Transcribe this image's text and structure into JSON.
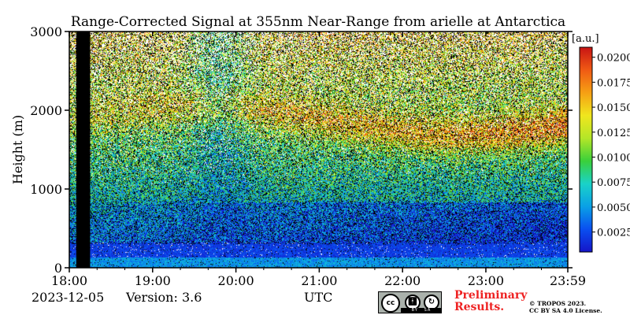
{
  "chart_data": {
    "type": "heatmap",
    "title": "Range-Corrected Signal at 355nm Near-Range from arielle at Antarctica",
    "xlabel": "UTC",
    "ylabel": "Height (m)",
    "x_ticks": [
      "18:00",
      "19:00",
      "20:00",
      "21:00",
      "22:00",
      "23:00",
      "23:59"
    ],
    "y_ticks": [
      0,
      1000,
      2000,
      3000
    ],
    "ylim": [
      0,
      3000
    ],
    "colorbar": {
      "unit": "[a.u.]",
      "ticks": [
        "0.0025",
        "0.0050",
        "0.0075",
        "0.0100",
        "0.0125",
        "0.0150",
        "0.0175",
        "0.0200"
      ],
      "range": [
        0.0005,
        0.021
      ]
    },
    "no_data_interval": [
      "18:05",
      "18:15"
    ],
    "colors": {
      "colormap": [
        "#1515c8",
        "#0a4ff0",
        "#0aa0e6",
        "#1ad2c8",
        "#3ad03a",
        "#b4e628",
        "#f0e61e",
        "#f6a014",
        "#f05a14",
        "#c81414"
      ],
      "no_data": "#000000"
    }
  },
  "footer": {
    "date": "2023-12-05",
    "version": "Version: 3.6",
    "x_label": "UTC",
    "preliminary_line1": "Preliminary",
    "preliminary_line2": "Results.",
    "copyright_line1": "© TROPOS 2023.",
    "copyright_line2": "CC BY SA 4.0 License.",
    "cc_badge": "cc",
    "cc_by": "BY",
    "cc_sa": "SA"
  }
}
